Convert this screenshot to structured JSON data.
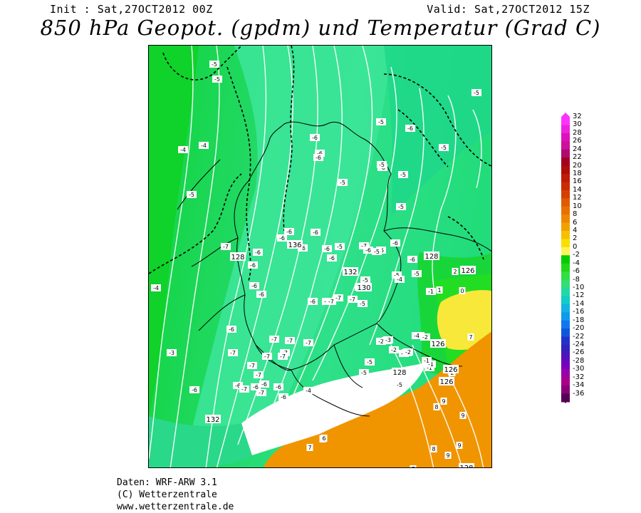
{
  "header": {
    "init": "Init : Sat,27OCT2012 00Z",
    "valid": "Valid: Sat,27OCT2012 15Z",
    "title": "850 hPa Geopot. (gpdm) und Temperatur (Grad C)"
  },
  "colorbar": {
    "labels": [
      "32",
      "30",
      "28",
      "26",
      "24",
      "22",
      "20",
      "18",
      "16",
      "14",
      "12",
      "10",
      "8",
      "6",
      "4",
      "2",
      "0",
      "-2",
      "-4",
      "-6",
      "-8",
      "-10",
      "-12",
      "-14",
      "-16",
      "-18",
      "-20",
      "-22",
      "-24",
      "-26",
      "-28",
      "-30",
      "-32",
      "-34",
      "-36"
    ],
    "colors": [
      "#ff33ff",
      "#ee22dd",
      "#dd11bb",
      "#cc1199",
      "#b00a6e",
      "#a30022",
      "#b00c0c",
      "#c01a0a",
      "#cc2a00",
      "#d54000",
      "#e05a00",
      "#e87000",
      "#ee8800",
      "#f2a000",
      "#f5c000",
      "#f7e000",
      "#fff25a",
      "#00cc00",
      "#22d61a",
      "#33dd44",
      "#33dd77",
      "#22d9a4",
      "#11ccc8",
      "#11b4e0",
      "#1199ee",
      "#1177ee",
      "#1155dd",
      "#2233cc",
      "#3322bb",
      "#5511bb",
      "#7700bb",
      "#9900aa",
      "#aa0088",
      "#880077",
      "#550055"
    ]
  },
  "map": {
    "geopotential_labels": [
      "136",
      "132",
      "130",
      "128",
      "126",
      "126",
      "126",
      "126",
      "128",
      "128",
      "132",
      "128"
    ],
    "temperature_labels": [
      "-5",
      "-5",
      "-5",
      "-6",
      "-5",
      "-4",
      "-4",
      "-6",
      "-5",
      "-6",
      "-6",
      "-6",
      "-6",
      "-6",
      "-6",
      "-6",
      "-6",
      "-6",
      "-6",
      "-7",
      "-6",
      "-7",
      "-5",
      "-6",
      "-5",
      "-5",
      "-5",
      "-5",
      "-4",
      "-3",
      "-7",
      "-7",
      "-6",
      "-7",
      "-7",
      "-6",
      "-6",
      "-7",
      "-7",
      "-7",
      "-7",
      "-7",
      "-7",
      "-6",
      "-6",
      "-6",
      "-4",
      "-5",
      "-5",
      "-5",
      "-3",
      "-2",
      "-2",
      "-2",
      "-1",
      "0",
      "2",
      "1",
      "7",
      "8",
      "9",
      "9",
      "8",
      "7",
      "8",
      "6",
      "7",
      "9",
      "9",
      "2",
      "-4",
      "-2",
      "-1",
      "-2",
      "-1",
      "-2",
      "-3",
      "-2",
      "-1",
      "-5",
      "-5",
      "-6",
      "-6",
      "-6",
      "-6",
      "-6",
      "-7",
      "-7",
      "-7",
      "-5",
      "-5",
      "-4",
      "-5",
      "-5",
      "-6",
      "-6",
      "-6",
      "-6",
      "-6",
      "-7"
    ]
  },
  "footer": {
    "line1": "Daten: WRF-ARW 3.1",
    "line2": "(C) Wetterzentrale",
    "line3": "www.wetterzentrale.de"
  }
}
